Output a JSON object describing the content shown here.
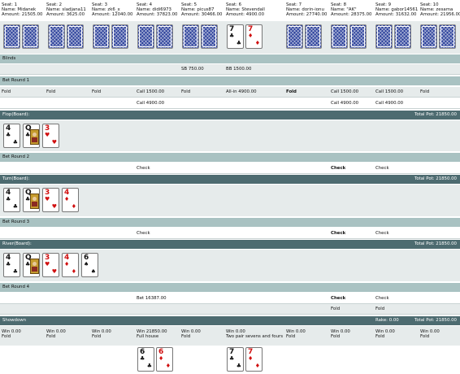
{
  "seats": [
    {
      "seat": "Seat: 1",
      "name": "Name: Midanek",
      "amount": "Amount: 21505.00"
    },
    {
      "seat": "Seat: 2",
      "name": "Name: sladjana11",
      "amount": "Amount: 3625.00"
    },
    {
      "seat": "Seat: 3",
      "name": "Name: zk6_x",
      "amount": "Amount: 12040.00"
    },
    {
      "seat": "Seat: 4",
      "name": "Name: didi6973",
      "amount": "Amount: 37823.00"
    },
    {
      "seat": "Seat: 5",
      "name": "Name: picus87",
      "amount": "Amount: 30466.00"
    },
    {
      "seat": "Seat: 6",
      "name": "Name: Stevendall",
      "amount": "Amount: 4900.00"
    },
    {
      "seat": "Seat: 7",
      "name": "Name: dorin-ionu",
      "amount": "Amount: 27740.00"
    },
    {
      "seat": "Seat: 8",
      "name": "Name: \"AK\"",
      "amount": "Amount: 28375.00"
    },
    {
      "seat": "Seat: 9",
      "name": "Name: gabor14561",
      "amount": "Amount: 31632.00"
    },
    {
      "seat": "Seat: 10",
      "name": "Name: zesama",
      "amount": "Amount: 21956.00"
    }
  ],
  "hole_cards": {
    "seat6": [
      {
        "rank": "7",
        "suit": "♣",
        "color": "black"
      },
      {
        "rank": "7",
        "suit": "♦",
        "color": "red"
      }
    ]
  },
  "blinds": {
    "label": "Blinds",
    "sb": "SB 750.00",
    "bb": "BB 1500.00"
  },
  "bet_round_1": {
    "label": "Bet Round 1",
    "row1": [
      "Fold",
      "Fold",
      "Fold",
      "Call 1500.00",
      "Fold",
      "All-in 4900.00",
      "Fold",
      "Call 1500.00",
      "Call 1500.00",
      "Fold"
    ],
    "row2": {
      "seat4": "Call 4900.00",
      "seat8": "Call 4900.00",
      "seat9": "Call 4900.00"
    }
  },
  "flop": {
    "label": "Flop(Board):",
    "pot": "Total Pot: 21850.00",
    "cards": [
      {
        "rank": "4",
        "suit": "♣",
        "color": "black"
      },
      {
        "rank": "Q",
        "suit": "♣",
        "color": "black",
        "face": true
      },
      {
        "rank": "3",
        "suit": "♥",
        "color": "red"
      }
    ]
  },
  "bet_round_2": {
    "label": "Bet Round 2",
    "seat4": "Check",
    "seat8": "Check",
    "seat9": "Check"
  },
  "turn": {
    "label": "Turn(Board):",
    "pot": "Total Pot: 21850.00",
    "cards": [
      {
        "rank": "4",
        "suit": "♣",
        "color": "black"
      },
      {
        "rank": "Q",
        "suit": "♣",
        "color": "black",
        "face": true
      },
      {
        "rank": "3",
        "suit": "♥",
        "color": "red"
      },
      {
        "rank": "4",
        "suit": "♦",
        "color": "red"
      }
    ]
  },
  "bet_round_3": {
    "label": "Bet Round 3",
    "seat4": "Check",
    "seat8": "Check",
    "seat9": "Check"
  },
  "river": {
    "label": "River(Board):",
    "pot": "Total Pot: 21850.00",
    "cards": [
      {
        "rank": "4",
        "suit": "♣",
        "color": "black"
      },
      {
        "rank": "Q",
        "suit": "♣",
        "color": "black",
        "face": true
      },
      {
        "rank": "3",
        "suit": "♥",
        "color": "red"
      },
      {
        "rank": "4",
        "suit": "♦",
        "color": "red"
      },
      {
        "rank": "6",
        "suit": "♠",
        "color": "black"
      }
    ]
  },
  "bet_round_4": {
    "label": "Bet Round 4",
    "row1": {
      "seat4": "Bet 16387.00",
      "seat8": "Check",
      "seat9": "Check"
    },
    "row2": {
      "seat8": "Fold",
      "seat9": "Fold"
    }
  },
  "showdown": {
    "label": "Showdown",
    "rake": "Rake: 0.00",
    "pot": "Total Pot: 21850.00",
    "results": [
      {
        "win": "Win 0.00",
        "hand": "Fold"
      },
      {
        "win": "Win 0.00",
        "hand": "Fold"
      },
      {
        "win": "Win 0.00",
        "hand": "Fold"
      },
      {
        "win": "Win 21850.00",
        "hand": "Full house"
      },
      {
        "win": "Win 0.00",
        "hand": "Fold"
      },
      {
        "win": "Win 0.00",
        "hand": "Two pair sevens and fours"
      },
      {
        "win": "Win 0.00",
        "hand": "Fold"
      },
      {
        "win": "Win 0.00",
        "hand": "Fold"
      },
      {
        "win": "Win 0.00",
        "hand": "Fold"
      },
      {
        "win": "Win 0.00",
        "hand": "Fold"
      }
    ],
    "shown_cards": {
      "seat4": [
        {
          "rank": "6",
          "suit": "♣",
          "color": "black"
        },
        {
          "rank": "6",
          "suit": "♦",
          "color": "red"
        }
      ],
      "seat6": [
        {
          "rank": "7",
          "suit": "♣",
          "color": "black"
        },
        {
          "rank": "7",
          "suit": "♦",
          "color": "red"
        }
      ]
    }
  },
  "colors": {
    "band_light": "#a9c2c2",
    "band_dark": "#4d6b70",
    "row_bg": "#e6ebeb",
    "card_back": "#2a3f9a",
    "red_suit": "#d01010"
  }
}
